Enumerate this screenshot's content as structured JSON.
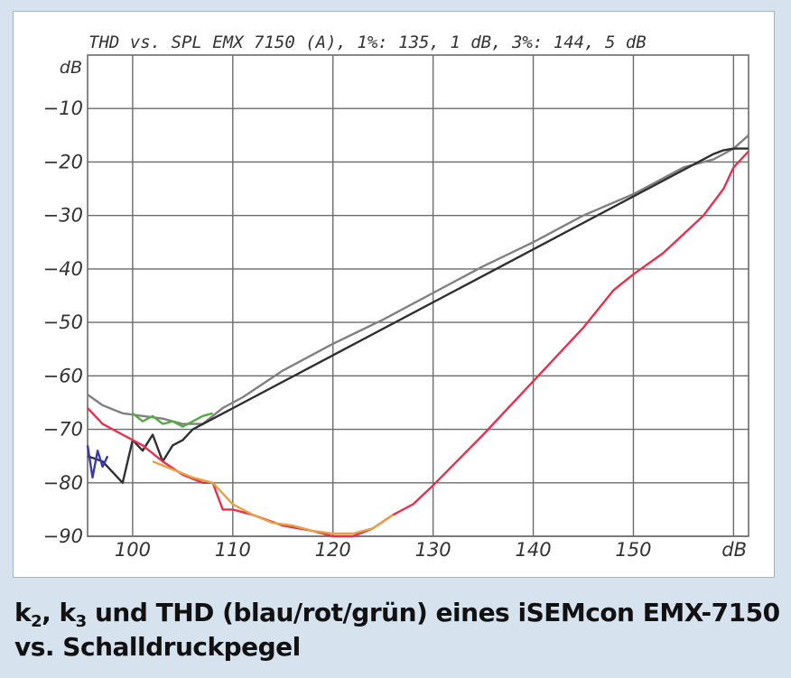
{
  "chart_data": {
    "type": "line",
    "title": "THD vs. SPL EMX 7150 (A),  1%: 135, 1 dB,  3%: 144, 5 dB",
    "xlabel": "",
    "ylabel": "",
    "x_unit": "dB",
    "y_unit": "dB",
    "xlim": [
      95.5,
      161.5
    ],
    "ylim": [
      -90,
      0
    ],
    "x_ticks": [
      100,
      110,
      120,
      130,
      140,
      150
    ],
    "y_ticks": [
      -90,
      -80,
      -70,
      -60,
      -50,
      -40,
      -30,
      -20,
      -10
    ],
    "grid": true,
    "legend": "none",
    "series": [
      {
        "color": "#808080",
        "x": [
          95.5,
          97,
          99,
          101,
          103,
          105,
          107,
          109,
          111,
          115,
          120,
          125,
          130,
          135,
          140,
          145,
          150,
          155,
          158,
          160,
          161.5
        ],
        "y": [
          -63.5,
          -65.5,
          -67,
          -67.5,
          -68,
          -69,
          -69,
          -66,
          -64,
          -59,
          -54,
          -49.5,
          -44.5,
          -39.5,
          -35,
          -30,
          -26,
          -21,
          -19.5,
          -17.5,
          -15
        ]
      },
      {
        "color": "#303030",
        "x": [
          95.5,
          97,
          98,
          99,
          100,
          101,
          102,
          103,
          104,
          105,
          106,
          158,
          159,
          160,
          161.5
        ],
        "y": [
          -75,
          -76,
          -78,
          -80,
          -72,
          -74,
          -71,
          -76,
          -73,
          -72,
          -70,
          -18.5,
          -17.8,
          -17.5,
          -17.5
        ]
      },
      {
        "color": "#3a3ab0",
        "x": [
          95.5,
          96,
          96.5,
          97,
          97.5
        ],
        "y": [
          -73,
          -79,
          -74,
          -77,
          -75
        ]
      },
      {
        "color": "#55aa44",
        "x": [
          100,
          101,
          102,
          103,
          104,
          105,
          106,
          107,
          108
        ],
        "y": [
          -67,
          -68.5,
          -67.5,
          -69,
          -68.5,
          -69.5,
          -68.5,
          -67.5,
          -67
        ]
      },
      {
        "color": "#e8304e",
        "x": [
          95.5,
          97,
          99,
          101,
          103,
          105,
          107,
          108,
          109,
          110,
          112,
          115,
          118,
          120,
          122,
          124,
          126,
          128,
          130,
          135,
          140,
          145,
          148,
          150,
          153,
          157,
          159,
          160,
          161.5
        ],
        "y": [
          -66,
          -69,
          -71,
          -73,
          -76,
          -78.5,
          -80,
          -80,
          -85,
          -85,
          -86,
          -88,
          -89,
          -90,
          -90,
          -88.5,
          -86,
          -84,
          -80.5,
          -71,
          -61,
          -51,
          -44,
          -41,
          -37,
          -30,
          -25,
          -21,
          -18
        ]
      },
      {
        "color": "#e8a040",
        "x": [
          102,
          104,
          106,
          108,
          110,
          112,
          114,
          116,
          118,
          120,
          122,
          124,
          126
        ],
        "y": [
          -76,
          -77.5,
          -79,
          -80,
          -84,
          -86,
          -87.5,
          -88,
          -89,
          -89.5,
          -89.5,
          -88.5,
          -86
        ]
      }
    ]
  },
  "caption": {
    "line1": {
      "k2_letter": "k",
      "k2_sub": "2",
      "comma": ", ",
      "k3_letter": "k",
      "k3_sub": "3",
      "rest": " und THD (blau/rot/grün) eines iSEMcon EMX-7150"
    },
    "line2": "vs. Schalldruckpegel"
  },
  "colors": {
    "page_background": "#d6e3ef",
    "plot_background": "#ffffff",
    "grid": "#6b6b6b",
    "caption_text": "#111111"
  }
}
